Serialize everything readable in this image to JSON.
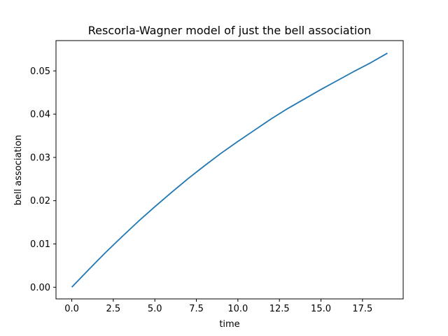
{
  "chart_data": {
    "type": "line",
    "title": "Rescorla-Wagner model of just the bell association",
    "xlabel": "time",
    "ylabel": "bell association",
    "xlim": [
      -0.95,
      19.95
    ],
    "ylim": [
      -0.0027,
      0.057
    ],
    "xticks": [
      0.0,
      2.5,
      5.0,
      7.5,
      10.0,
      12.5,
      15.0,
      17.5
    ],
    "xtick_labels": [
      "0.0",
      "2.5",
      "5.0",
      "7.5",
      "10.0",
      "12.5",
      "15.0",
      "17.5"
    ],
    "yticks": [
      0.0,
      0.01,
      0.02,
      0.03,
      0.04,
      0.05
    ],
    "ytick_labels": [
      "0.00",
      "0.01",
      "0.02",
      "0.03",
      "0.04",
      "0.05"
    ],
    "grid": false,
    "series": [
      {
        "color": "#1f77b4",
        "x": [
          0,
          1,
          2,
          3,
          4,
          5,
          6,
          7,
          8,
          9,
          10,
          11,
          12,
          13,
          14,
          15,
          16,
          17,
          18,
          19
        ],
        "values": [
          0.0,
          0.004,
          0.0079,
          0.0116,
          0.0152,
          0.0186,
          0.0219,
          0.0251,
          0.0281,
          0.031,
          0.0337,
          0.0363,
          0.0389,
          0.0413,
          0.0435,
          0.0457,
          0.0478,
          0.0499,
          0.0519,
          0.0541
        ]
      }
    ]
  }
}
